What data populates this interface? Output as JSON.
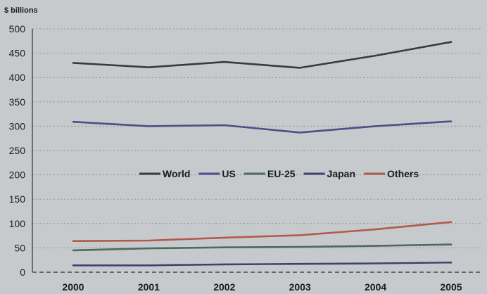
{
  "chart_data": {
    "type": "line",
    "ylabel": "$ billions",
    "ylim": [
      0,
      500
    ],
    "y_ticks": [
      0,
      50,
      100,
      150,
      200,
      250,
      300,
      350,
      400,
      450,
      500
    ],
    "categories": [
      "2000",
      "2001",
      "2002",
      "2003",
      "2004",
      "2005"
    ],
    "grid": true,
    "legend_position": "middle",
    "series": [
      {
        "name": "World",
        "color": "#3a3a3a",
        "values": [
          430,
          421,
          432,
          420,
          445,
          473
        ]
      },
      {
        "name": "US",
        "color": "#4a4e8a",
        "values": [
          309,
          300,
          302,
          287,
          300,
          310
        ]
      },
      {
        "name": "EU-25",
        "color": "#4d6a5c",
        "values": [
          45,
          49,
          51,
          52,
          54,
          57
        ]
      },
      {
        "name": "Japan",
        "color": "#3e4270",
        "values": [
          14,
          14,
          16,
          17,
          18,
          20
        ]
      },
      {
        "name": "Others",
        "color": "#b05a4a",
        "values": [
          64,
          65,
          71,
          76,
          88,
          103
        ]
      }
    ]
  }
}
